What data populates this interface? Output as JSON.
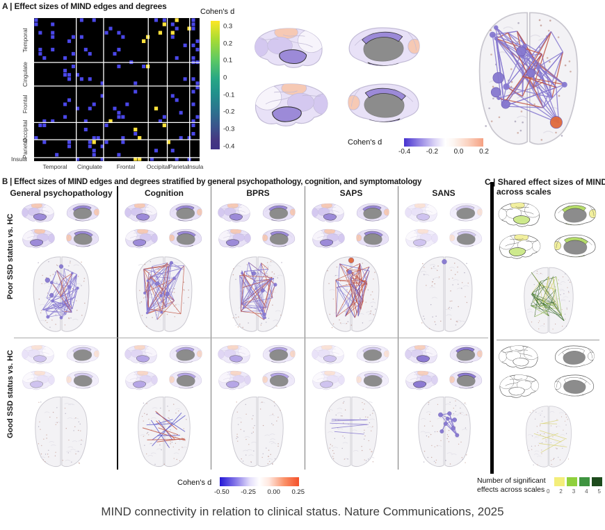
{
  "panelA": {
    "title": "A | Effect sizes of MIND edges and degrees",
    "matrix_labels": [
      "Temporal",
      "Cingulate",
      "Frontal",
      "Occipital",
      "Parietal",
      "Insula"
    ],
    "colorbar": {
      "title": "Cohen's d",
      "ticks": [
        "0.3",
        "0.2",
        "0.1",
        "0",
        "-0.1",
        "-0.2",
        "-0.3",
        "-0.4"
      ]
    },
    "brain_colorbar": {
      "title": "Cohen's d",
      "ticks": [
        "-0.4",
        "-0.2",
        "0.0",
        "0.2"
      ]
    }
  },
  "panelB": {
    "title": "B | Effect sizes of MIND edges and degrees stratified by general psychopathology, cognition, and symptomatology",
    "columns": [
      "General psychopathology",
      "Cognition",
      "BPRS",
      "SAPS",
      "SANS"
    ],
    "rows": [
      "Poor SSD status vs. HC",
      "Good SSD status vs. HC"
    ],
    "legend": {
      "title": "Cohen's d",
      "ticks": [
        "-0.50",
        "-0.25",
        "0.00",
        "0.25"
      ]
    }
  },
  "panelC": {
    "title_line1": "C | Shared effect sizes of MIND",
    "title_line2": "across scales",
    "legend": {
      "line1": "Number of significant",
      "line2": "effects across scales",
      "ticks": [
        "0",
        "2",
        "3",
        "4",
        "5"
      ],
      "swatches": [
        "#f3ee7a",
        "#8fd03c",
        "#3f9440",
        "#1d4a1c"
      ]
    }
  },
  "caption": "MIND connectivity in relation to clinical status. Nature Communications, 2025",
  "figures": {
    "heatmap": {
      "x_fracs": [
        0.255,
        0.165,
        0.27,
        0.115,
        0.135,
        0.06
      ],
      "y_fracs": [
        0.31,
        0.165,
        0.255,
        0.12,
        0.125,
        0.025
      ],
      "blue": "#4a47e8",
      "yellow": "#ffe23c",
      "bg": "#000000",
      "seed": 7
    },
    "edge_colors": {
      "purple": "#8678d0",
      "red": "#c05240",
      "blue": "#5a55c8",
      "green": "#3c6e2f",
      "lgreen": "#85b43c",
      "yellow": "#d8d270",
      "redNode": "#e06a3c"
    },
    "schemes": {
      "strong": {
        "base": "#e8e1f7",
        "mid": "#d4c8f0",
        "light": "#f7f4fb",
        "temporal": "#9c8ad8",
        "accent": "#f6c9b4",
        "cing": "#9c8ad8",
        "line": "#c2bbd6",
        "dark": "#333333"
      },
      "medium": {
        "base": "#eee9f9",
        "mid": "#e0d6f4",
        "light": "#f8f5fc",
        "temporal": "#b6a6e6",
        "accent": "#f8d7c7",
        "cing": "#b6a6e6",
        "line": "#cfc8df",
        "dark": "#555555"
      },
      "pale": {
        "base": "#f2eefb",
        "mid": "#e9e2f8",
        "light": "#fbf9fd",
        "temporal": "#cfc3ef",
        "accent": "#fae2d6",
        "cing": "#d6ccf1",
        "line": "#d8d2e6",
        "dark": "#777777"
      },
      "strong2": {
        "base": "#ece6f8",
        "mid": "#dcd2f2",
        "light": "#f7f4fb",
        "temporal": "#8d7ad2",
        "accent": "#f7cfbc",
        "cing": "#8d7ad2",
        "line": "#c6bfda",
        "dark": "#222222"
      },
      "greens": {
        "base": "#ffffff",
        "mid": "#ffffff",
        "light": "#ffffff",
        "temporal": "#cde98c",
        "accent": "#f1ef9e",
        "cing": "#b5dc6a",
        "line": "#555555",
        "dark": "#333333"
      },
      "outline": {
        "base": "#ffffff",
        "mid": "#ffffff",
        "light": "#ffffff",
        "temporal": "#ffffff",
        "accent": "#ffffff",
        "cing": "#ffffff",
        "line": "#555555",
        "dark": "#555555"
      }
    },
    "main_net": {
      "seed": 11,
      "mode": "dense",
      "edges": 95,
      "palette": [
        [
          "purple",
          0.7
        ],
        [
          "red",
          0.3
        ]
      ],
      "nodes": [
        [
          25,
          60,
          4.5,
          "purple"
        ],
        [
          23,
          72,
          4,
          "purple"
        ],
        [
          31,
          82,
          3.5,
          "purple"
        ],
        [
          44,
          38,
          4,
          "purple"
        ],
        [
          52,
          56,
          3.5,
          "purple"
        ],
        [
          73,
          97,
          5,
          "redNode"
        ]
      ]
    },
    "cells": {
      "poor_gp": {
        "scheme": "strong",
        "net": {
          "seed": 21,
          "mode": "dense",
          "edges": 80,
          "palette": [
            [
              "purple",
              0.88
            ],
            [
              "red",
              0.12
            ]
          ],
          "nodes": [
            [
              30,
              40,
              3.5,
              "purple"
            ],
            [
              50,
              20,
              3,
              "purple"
            ],
            [
              36,
              62,
              3,
              "purple"
            ]
          ]
        }
      },
      "poor_cog": {
        "scheme": "strong",
        "net": {
          "seed": 22,
          "mode": "dense",
          "edges": 78,
          "palette": [
            [
              "purple",
              0.75
            ],
            [
              "red",
              0.25
            ]
          ],
          "nodes": [
            [
              40,
              45,
              3,
              "purple"
            ],
            [
              55,
              60,
              3,
              "purple"
            ]
          ]
        }
      },
      "poor_bprs": {
        "scheme": "strong",
        "net": {
          "seed": 23,
          "mode": "dense",
          "edges": 78,
          "palette": [
            [
              "purple",
              0.7
            ],
            [
              "red",
              0.3
            ]
          ],
          "nodes": [
            [
              45,
              30,
              3,
              "purple"
            ],
            [
              58,
              55,
              2.8,
              "purple"
            ]
          ]
        }
      },
      "poor_saps": {
        "scheme": "strong",
        "net": {
          "seed": 24,
          "mode": "dense",
          "edges": 84,
          "palette": [
            [
              "red",
              0.6
            ],
            [
              "purple",
              0.3
            ],
            [
              "blue",
              0.1
            ]
          ],
          "nodes": [
            [
              50,
              11,
              4,
              "redNode"
            ],
            [
              48,
              28,
              3,
              "purple"
            ]
          ]
        }
      },
      "poor_sans": {
        "scheme": "pale",
        "net": {
          "seed": 25,
          "mode": "none",
          "edges": 0,
          "palette": [
            [
              "purple",
              1
            ]
          ],
          "nodes": [
            [
              50,
              13,
              3.5,
              "purple"
            ]
          ]
        }
      },
      "good_gp": {
        "scheme": "pale",
        "net": {
          "seed": 31,
          "mode": "none",
          "edges": 0,
          "palette": [
            [
              "purple",
              1
            ]
          ],
          "nodes": []
        }
      },
      "good_cog": {
        "scheme": "medium",
        "net": {
          "seed": 32,
          "mode": "sparse",
          "edges": 14,
          "palette": [
            [
              "blue",
              0.5
            ],
            [
              "red",
              0.5
            ]
          ],
          "nodes": []
        }
      },
      "good_bprs": {
        "scheme": "medium",
        "net": {
          "seed": 33,
          "mode": "none",
          "edges": 0,
          "palette": [
            [
              "purple",
              1
            ]
          ],
          "nodes": []
        }
      },
      "good_saps": {
        "scheme": "pale",
        "net": {
          "seed": 34,
          "mode": "horizontal",
          "edges": 5,
          "palette": [
            [
              "purple",
              1
            ]
          ],
          "nodes": []
        }
      },
      "good_sans": {
        "scheme": "strong2",
        "net": {
          "seed": 35,
          "mode": "cluster",
          "edges": 16,
          "palette": [
            [
              "purple",
              1
            ]
          ],
          "nodes": [
            [
              44,
              34,
              3.5,
              "purple"
            ],
            [
              58,
              32,
              3.2,
              "purple"
            ],
            [
              66,
              42,
              3.4,
              "purple"
            ],
            [
              52,
              48,
              3,
              "purple"
            ],
            [
              64,
              55,
              3.2,
              "purple"
            ],
            [
              46,
              60,
              3,
              "purple"
            ],
            [
              70,
              66,
              3,
              "purple"
            ],
            [
              55,
              40,
              2.8,
              "purple"
            ]
          ]
        }
      },
      "c_top": {
        "scheme": "greens",
        "net": {
          "seed": 41,
          "mode": "dense",
          "edges": 60,
          "palette": [
            [
              "green",
              0.5
            ],
            [
              "lgreen",
              0.28
            ],
            [
              "yellow",
              0.22
            ]
          ],
          "nodes": []
        }
      },
      "c_bottom": {
        "scheme": "outline",
        "net": {
          "seed": 42,
          "mode": "sparse",
          "edges": 7,
          "palette": [
            [
              "yellow",
              1
            ]
          ],
          "nodes": []
        }
      }
    }
  }
}
